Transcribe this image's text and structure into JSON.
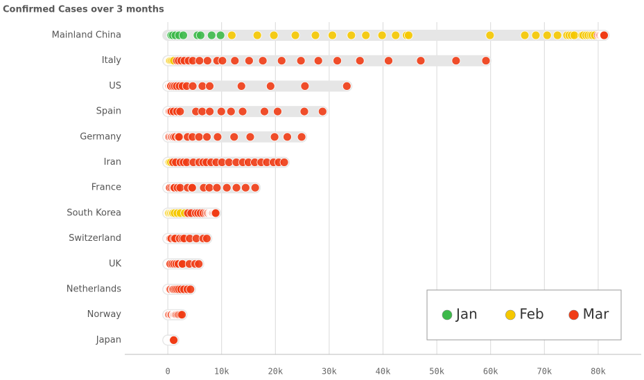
{
  "chart_data": {
    "type": "dot-strip",
    "title": "Confirmed Cases over 3 months",
    "categories": [
      "Mainland China",
      "Italy",
      "US",
      "Spain",
      "Germany",
      "Iran",
      "France",
      "South Korea",
      "Switzerland",
      "UK",
      "Netherlands",
      "Norway",
      "Japan"
    ],
    "series": [
      {
        "name": "Jan",
        "color": "#3db94a",
        "values": [
          [
            548,
            643,
            920,
            1406,
            2075,
            2877,
            5509,
            6087,
            8141,
            9802
          ],
          [],
          [
            1,
            1,
            2,
            2,
            5,
            5,
            5,
            5,
            5,
            6
          ],
          [],
          [
            1,
            4,
            4,
            5
          ],
          [],
          [
            3,
            3,
            4,
            5,
            5
          ],
          [
            1,
            1,
            2,
            2,
            3,
            4,
            4,
            4,
            4,
            11
          ],
          [],
          [
            2
          ],
          [],
          [],
          [
            2,
            2,
            2,
            2,
            4,
            4,
            7,
            7,
            11,
            15
          ]
        ]
      },
      {
        "name": "Feb",
        "color": "#f5c800",
        "values": [
          [
            11891,
            16630,
            19716,
            23707,
            27440,
            30587,
            34110,
            36814,
            39829,
            42354,
            44386,
            44759,
            59895,
            66358,
            68413,
            70513,
            72434,
            74211,
            74619,
            75077,
            75550,
            77001,
            77022,
            77241,
            77754,
            78166,
            78600,
            78928,
            79356
          ],
          [
            20,
            62,
            155,
            229,
            322,
            453,
            655,
            888,
            1128
          ],
          [
            15,
            35,
            53,
            60,
            68
          ],
          [
            2,
            6,
            13,
            15,
            32,
            45
          ],
          [
            16,
            18,
            21,
            26,
            53,
            66,
            117
          ],
          [
            2,
            5,
            18,
            28,
            43,
            61,
            95,
            139,
            245,
            388,
            593
          ],
          [
            12,
            38,
            57,
            100
          ],
          [
            12,
            15,
            16,
            19,
            23,
            24,
            25,
            27,
            28,
            29,
            30,
            31,
            104,
            204,
            433,
            602,
            833,
            977,
            1261,
            1766,
            2337,
            3150
          ],
          [
            1,
            1,
            8,
            8,
            18
          ],
          [
            9,
            13,
            16,
            19,
            23
          ],
          [
            1,
            1,
            6,
            10
          ],
          [
            1,
            1,
            6,
            15,
            19
          ],
          [
            20,
            22,
            25,
            26,
            28,
            29,
            43,
            59,
            66,
            74,
            84,
            94,
            105,
            122,
            147,
            159,
            170,
            189,
            214,
            228,
            241
          ]
        ]
      },
      {
        "name": "Mar",
        "color": "#f03c15",
        "values": [
          [
            79932,
            80136,
            80261,
            80386,
            80537,
            80690,
            80770,
            80823,
            80860,
            80887,
            80921,
            80932,
            80945,
            80977,
            81003,
            81033,
            81058,
            81102
          ],
          [
            1694,
            2036,
            2502,
            3089,
            3858,
            4636,
            5883,
            7375,
            9172,
            10149,
            12462,
            15113,
            17660,
            21157,
            24747,
            27980,
            31506,
            35713,
            41035,
            47021,
            53578,
            59138
          ],
          [
            74,
            98,
            118,
            149,
            217,
            262,
            402,
            518,
            583,
            959,
            1281,
            1663,
            2179,
            2727,
            3499,
            4632,
            6421,
            7786,
            13680,
            19100,
            25489,
            33276
          ],
          [
            84,
            120,
            165,
            222,
            259,
            400,
            500,
            673,
            1073,
            1695,
            2277,
            5232,
            6391,
            7798,
            9942,
            11748,
            13910,
            17963,
            20410,
            25374,
            28768
          ],
          [
            130,
            159,
            196,
            262,
            482,
            670,
            799,
            1040,
            1176,
            1457,
            1908,
            2078,
            3675,
            4585,
            5795,
            7272,
            9257,
            12327,
            15320,
            19848,
            22213,
            24873
          ],
          [
            978,
            1501,
            2336,
            2922,
            3513,
            4747,
            5823,
            6566,
            7161,
            8042,
            9000,
            10075,
            11364,
            12729,
            13938,
            14991,
            16169,
            17361,
            18407,
            19644,
            20610,
            21638
          ],
          [
            130,
            191,
            204,
            288,
            380,
            656,
            957,
            1136,
            1219,
            1794,
            2293,
            3681,
            4496,
            4532,
            6683,
            7715,
            9124,
            10970,
            12758,
            14463,
            16243
          ],
          [
            3736,
            4335,
            5186,
            5621,
            6088,
            6593,
            7041,
            7314,
            7478,
            7513,
            7755,
            7869,
            7979,
            8086,
            8162,
            8236,
            8320,
            8413,
            8565,
            8652,
            8799,
            8897
          ],
          [
            27,
            42,
            56,
            90,
            114,
            214,
            268,
            337,
            374,
            491,
            652,
            1139,
            1359,
            2200,
            2700,
            3028,
            4075,
            5294,
            6575,
            7245
          ],
          [
            36,
            40,
            51,
            86,
            116,
            164,
            207,
            274,
            322,
            384,
            459,
            802,
            1144,
            1551,
            1960,
            2642,
            2716,
            4014,
            5067,
            5745
          ],
          [
            18,
            24,
            38,
            82,
            128,
            188,
            265,
            321,
            382,
            503,
            804,
            959,
            1135,
            1413,
            1705,
            2051,
            2460,
            2994,
            3631,
            4204
          ],
          [
            25,
            32,
            56,
            87,
            108,
            147,
            176,
            205,
            400,
            598,
            702,
            996,
            1090,
            1221,
            1333,
            1463,
            1550,
            1746,
            1914,
            2118,
            2385,
            2621
          ],
          [
            256,
            274,
            293,
            331,
            360,
            420,
            461,
            502,
            511,
            581,
            639,
            701,
            773,
            839,
            878,
            889,
            924,
            963,
            1007,
            1101
          ]
        ]
      }
    ],
    "xlim": [
      -8000,
      88000
    ],
    "xticks": [
      0,
      {
        "value": 10000,
        "label": "10k"
      },
      {
        "value": 20000,
        "label": "20k"
      },
      {
        "value": 30000,
        "label": "30k"
      },
      {
        "value": 40000,
        "label": "40k"
      },
      {
        "value": 50000,
        "label": "50k"
      },
      {
        "value": 60000,
        "label": "60k"
      },
      {
        "value": 70000,
        "label": "70k"
      },
      {
        "value": 80000,
        "label": "80k"
      }
    ],
    "grid": true,
    "legend": "bottom-right"
  }
}
